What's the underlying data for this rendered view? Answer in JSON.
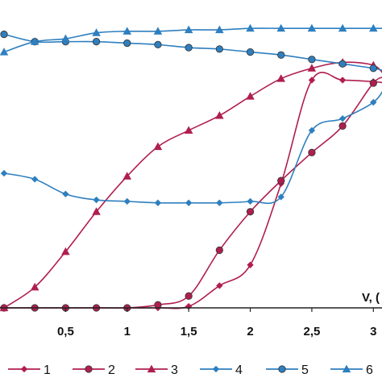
{
  "chart_data": {
    "type": "line",
    "xlabel": "V, (",
    "x_ticks": [
      "0,5",
      "1",
      "1,5",
      "2",
      "2,5",
      "3"
    ],
    "x_tick_values": [
      0.5,
      1,
      1.5,
      2,
      2.5,
      3
    ],
    "xlim": [
      0,
      3.07
    ],
    "ylim": [
      0,
      1
    ],
    "grid": false,
    "legend_position": "bottom",
    "series": [
      {
        "name": "1",
        "color": "#b01e4e",
        "marker": "diamond",
        "x": [
          0,
          0.25,
          0.5,
          0.75,
          1.0,
          1.25,
          1.5,
          1.75,
          2.0,
          2.25,
          2.5,
          2.75,
          3.0,
          3.1
        ],
        "y": [
          0,
          0.0,
          0.0,
          0.0,
          0.0,
          0.0,
          0.005,
          0.075,
          0.145,
          0.42,
          0.77,
          0.77,
          0.765,
          0.76
        ]
      },
      {
        "name": "2",
        "color": "#b01e4e",
        "marker": "circle",
        "x": [
          0,
          0.25,
          0.5,
          0.75,
          1.0,
          1.25,
          1.5,
          1.75,
          2.0,
          2.25,
          2.5,
          2.75,
          3.0,
          3.1
        ],
        "y": [
          0,
          0.0,
          0.0,
          0.0,
          0.0,
          0.01,
          0.04,
          0.195,
          0.325,
          0.43,
          0.525,
          0.615,
          0.76,
          0.78
        ]
      },
      {
        "name": "3",
        "color": "#b01e4e",
        "marker": "triangle",
        "x": [
          0,
          0.25,
          0.5,
          0.75,
          1.0,
          1.25,
          1.5,
          1.75,
          2.0,
          2.25,
          2.5,
          2.75,
          3.0,
          3.1
        ],
        "y": [
          0,
          0.07,
          0.19,
          0.325,
          0.445,
          0.545,
          0.6,
          0.65,
          0.715,
          0.775,
          0.81,
          0.83,
          0.82,
          0.78
        ]
      },
      {
        "name": "4",
        "color": "#2e7fbf",
        "marker": "diamond",
        "x": [
          0,
          0.25,
          0.5,
          0.75,
          1.0,
          1.25,
          1.5,
          1.75,
          2.0,
          2.25,
          2.5,
          2.75,
          3.0,
          3.1
        ],
        "y": [
          0.455,
          0.435,
          0.385,
          0.365,
          0.36,
          0.355,
          0.355,
          0.355,
          0.36,
          0.375,
          0.6,
          0.64,
          0.695,
          0.75
        ]
      },
      {
        "name": "5",
        "color": "#2e7fbf",
        "marker": "circle",
        "x": [
          0,
          0.25,
          0.5,
          0.75,
          1.0,
          1.25,
          1.5,
          1.75,
          2.0,
          2.25,
          2.5,
          2.75,
          3.0,
          3.1
        ],
        "y": [
          0.925,
          0.9,
          0.9,
          0.9,
          0.895,
          0.89,
          0.88,
          0.875,
          0.865,
          0.855,
          0.84,
          0.825,
          0.81,
          0.8
        ]
      },
      {
        "name": "6",
        "color": "#2e7fbf",
        "marker": "triangle",
        "x": [
          0,
          0.25,
          0.5,
          0.75,
          1.0,
          1.25,
          1.5,
          1.75,
          2.0,
          2.25,
          2.5,
          2.75,
          3.0,
          3.1
        ],
        "y": [
          0.865,
          0.9,
          0.91,
          0.93,
          0.935,
          0.935,
          0.94,
          0.94,
          0.945,
          0.945,
          0.945,
          0.945,
          0.945,
          0.945
        ]
      }
    ]
  }
}
